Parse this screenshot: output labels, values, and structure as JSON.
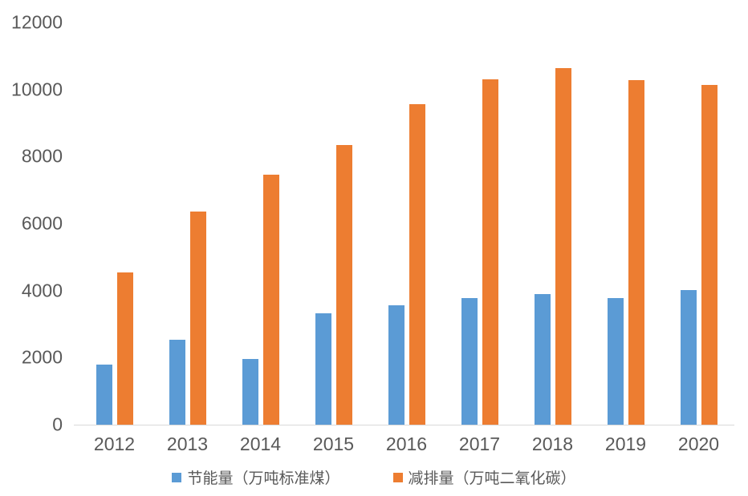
{
  "chart_data": {
    "type": "bar",
    "categories": [
      "2012",
      "2013",
      "2014",
      "2015",
      "2016",
      "2017",
      "2018",
      "2019",
      "2020"
    ],
    "series": [
      {
        "name": "节能量（万吨标准煤）",
        "color": "#5B9BD5",
        "values": [
          1800,
          2530,
          1950,
          3330,
          3560,
          3780,
          3900,
          3780,
          4010
        ]
      },
      {
        "name": "减排量（万吨二氧化碳）",
        "color": "#ED7D31",
        "values": [
          4550,
          6360,
          7460,
          8350,
          9560,
          10300,
          10630,
          10280,
          10130
        ]
      }
    ],
    "title": "",
    "xlabel": "",
    "ylabel": "",
    "ylim": [
      0,
      12000
    ],
    "yticks": [
      0,
      2000,
      4000,
      6000,
      8000,
      10000,
      12000
    ],
    "grid": false,
    "legend_position": "bottom",
    "colors": {
      "axis_line": "#D9D9D9",
      "label_text": "#595959",
      "background": "#FFFFFF"
    }
  }
}
